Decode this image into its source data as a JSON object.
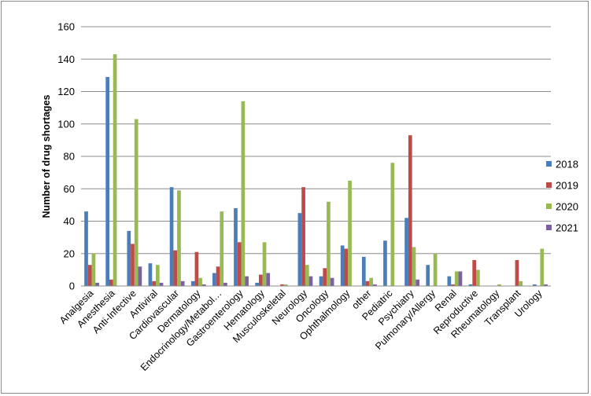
{
  "chart_data": {
    "type": "bar",
    "title": "",
    "xlabel": "",
    "ylabel": "Number  of drug shortages",
    "ylim": [
      0,
      160
    ],
    "yticks": [
      0,
      20,
      40,
      60,
      80,
      100,
      120,
      140,
      160
    ],
    "grid": true,
    "legend_position": "right",
    "categories": [
      "Analgesia",
      "Anesthesia",
      "Anti-Infective",
      "Antiviral",
      "Cardiovascular",
      "Dermatology",
      "Endocrinology/Metabol…",
      "Gastroenterology",
      "Hematology",
      "Musculoskeletal",
      "Neurology",
      "Oncology",
      "Ophthalmology",
      "other",
      "Pediatric",
      "Psychiatry",
      "Pulmonary/Allergy",
      "Renal",
      "Reproductive",
      "Rheumatology",
      "Transplant",
      "Urology"
    ],
    "series": [
      {
        "name": "2018",
        "color": "#4a7ebb",
        "values": [
          46,
          129,
          34,
          14,
          61,
          3,
          8,
          48,
          2,
          0,
          45,
          6,
          25,
          18,
          28,
          42,
          13,
          6,
          1,
          0,
          0,
          1
        ]
      },
      {
        "name": "2019",
        "color": "#be4b48",
        "values": [
          13,
          4,
          26,
          3,
          22,
          21,
          12,
          27,
          7,
          1,
          61,
          11,
          23,
          3,
          0,
          93,
          0,
          1,
          16,
          0,
          16,
          0
        ]
      },
      {
        "name": "2020",
        "color": "#98b954",
        "values": [
          20,
          143,
          103,
          13,
          59,
          5,
          46,
          114,
          27,
          1,
          13,
          52,
          65,
          5,
          76,
          24,
          20,
          9,
          10,
          1,
          3,
          23
        ]
      },
      {
        "name": "2021",
        "color": "#7d60a0",
        "values": [
          2,
          0,
          12,
          2,
          3,
          1,
          2,
          6,
          8,
          0,
          6,
          5,
          0,
          1,
          0,
          4,
          0,
          9,
          0,
          0,
          0,
          1
        ]
      }
    ]
  }
}
